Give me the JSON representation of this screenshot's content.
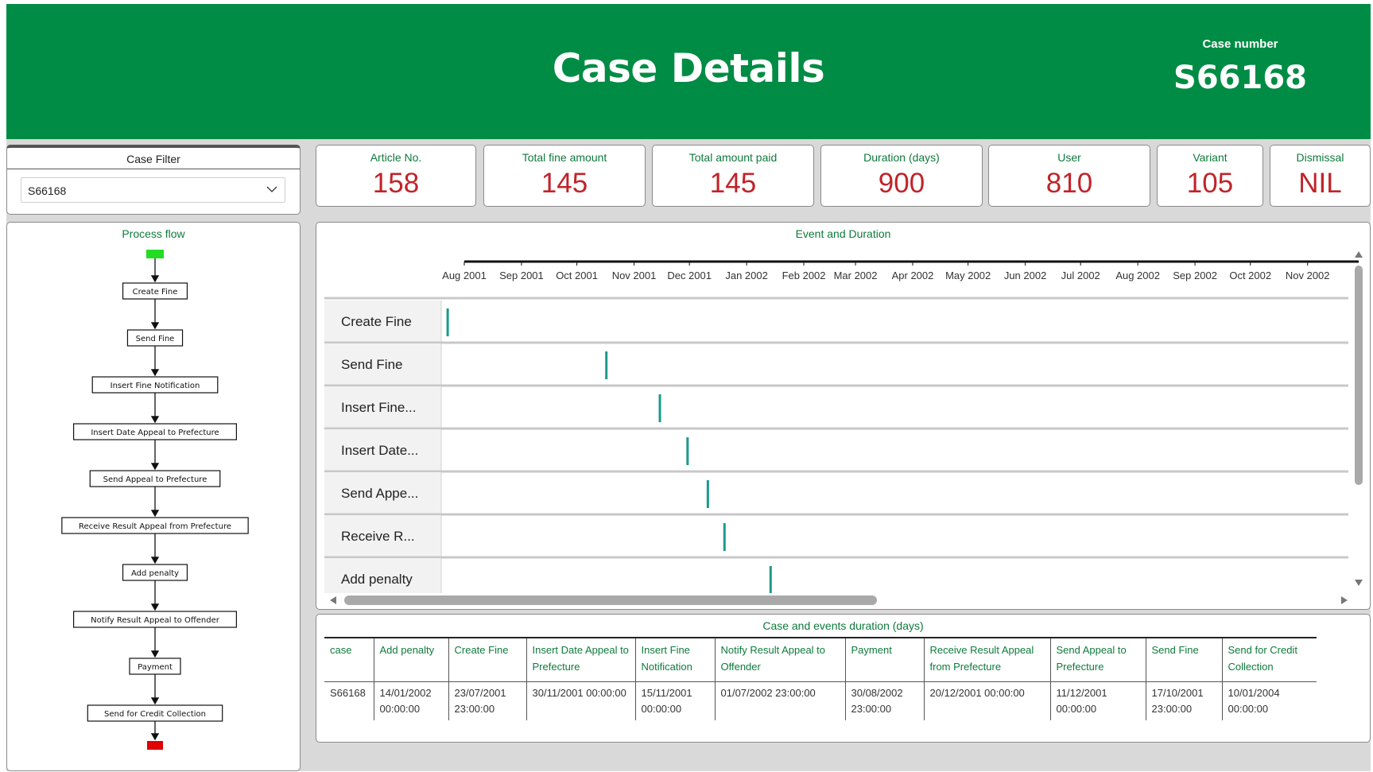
{
  "header": {
    "title": "Case Details",
    "case_number_label": "Case number",
    "case_number_value": "S66168"
  },
  "filter": {
    "title": "Case Filter",
    "selected": "S66168"
  },
  "kpis": [
    {
      "label": "Article No.",
      "value": "158"
    },
    {
      "label": "Total fine amount",
      "value": "145"
    },
    {
      "label": "Total amount paid",
      "value": "145"
    },
    {
      "label": "Duration (days)",
      "value": "900"
    },
    {
      "label": "User",
      "value": "810"
    },
    {
      "label": "Variant",
      "value": "105"
    },
    {
      "label": "Dismissal",
      "value": "NIL"
    }
  ],
  "process_flow": {
    "title": "Process flow",
    "steps": [
      "Create Fine",
      "Send Fine",
      "Insert Fine Notification",
      "Insert Date Appeal to Prefecture",
      "Send Appeal to Prefecture",
      "Receive Result Appeal from Prefecture",
      "Add penalty",
      "Notify Result Appeal to Offender",
      "Payment",
      "Send for Credit Collection"
    ],
    "start_color": "#22dd22",
    "end_color": "#e00000"
  },
  "gantt": {
    "title": "Event and Duration",
    "months": [
      "Aug 2001",
      "Sep 2001",
      "Oct 2001",
      "Nov 2001",
      "Dec 2001",
      "Jan 2002",
      "Feb 2002",
      "Mar 2002",
      "Apr 2002",
      "May 2002",
      "Jun 2002",
      "Jul 2002",
      "Aug 2002",
      "Sep 2002",
      "Oct 2002",
      "Nov 2002"
    ],
    "mark_color": "#1a9a8a"
  },
  "chart_data": {
    "type": "scatter",
    "title": "Event and Duration",
    "x_axis": "date",
    "xlim": [
      "2001-08-01",
      "2002-11-30"
    ],
    "categories": [
      "Create Fine",
      "Send Fine",
      "Insert Fine...",
      "Insert Date...",
      "Send Appe...",
      "Receive R...",
      "Add penalty"
    ],
    "x": [
      "2001-07-23",
      "2001-10-17",
      "2001-11-15",
      "2001-11-30",
      "2001-12-11",
      "2001-12-20",
      "2002-01-14"
    ]
  },
  "table": {
    "title": "Case and events duration (days)",
    "headers": [
      "case",
      "Add penalty",
      "Create Fine",
      "Insert Date Appeal to Prefecture",
      "Insert Fine Notification",
      "Notify Result Appeal to Offender",
      "Payment",
      "Receive Result Appeal from Prefecture",
      "Send Appeal to Prefecture",
      "Send Fine",
      "Send for Credit Collection"
    ],
    "rows": [
      [
        "S66168",
        "14/01/2002 00:00:00",
        "23/07/2001 23:00:00",
        "30/11/2001 00:00:00",
        "15/11/2001 00:00:00",
        "01/07/2002 23:00:00",
        "30/08/2002 23:00:00",
        "20/12/2001 00:00:00",
        "11/12/2001 00:00:00",
        "17/10/2001 23:00:00",
        "10/01/2004 00:00:00"
      ]
    ]
  }
}
